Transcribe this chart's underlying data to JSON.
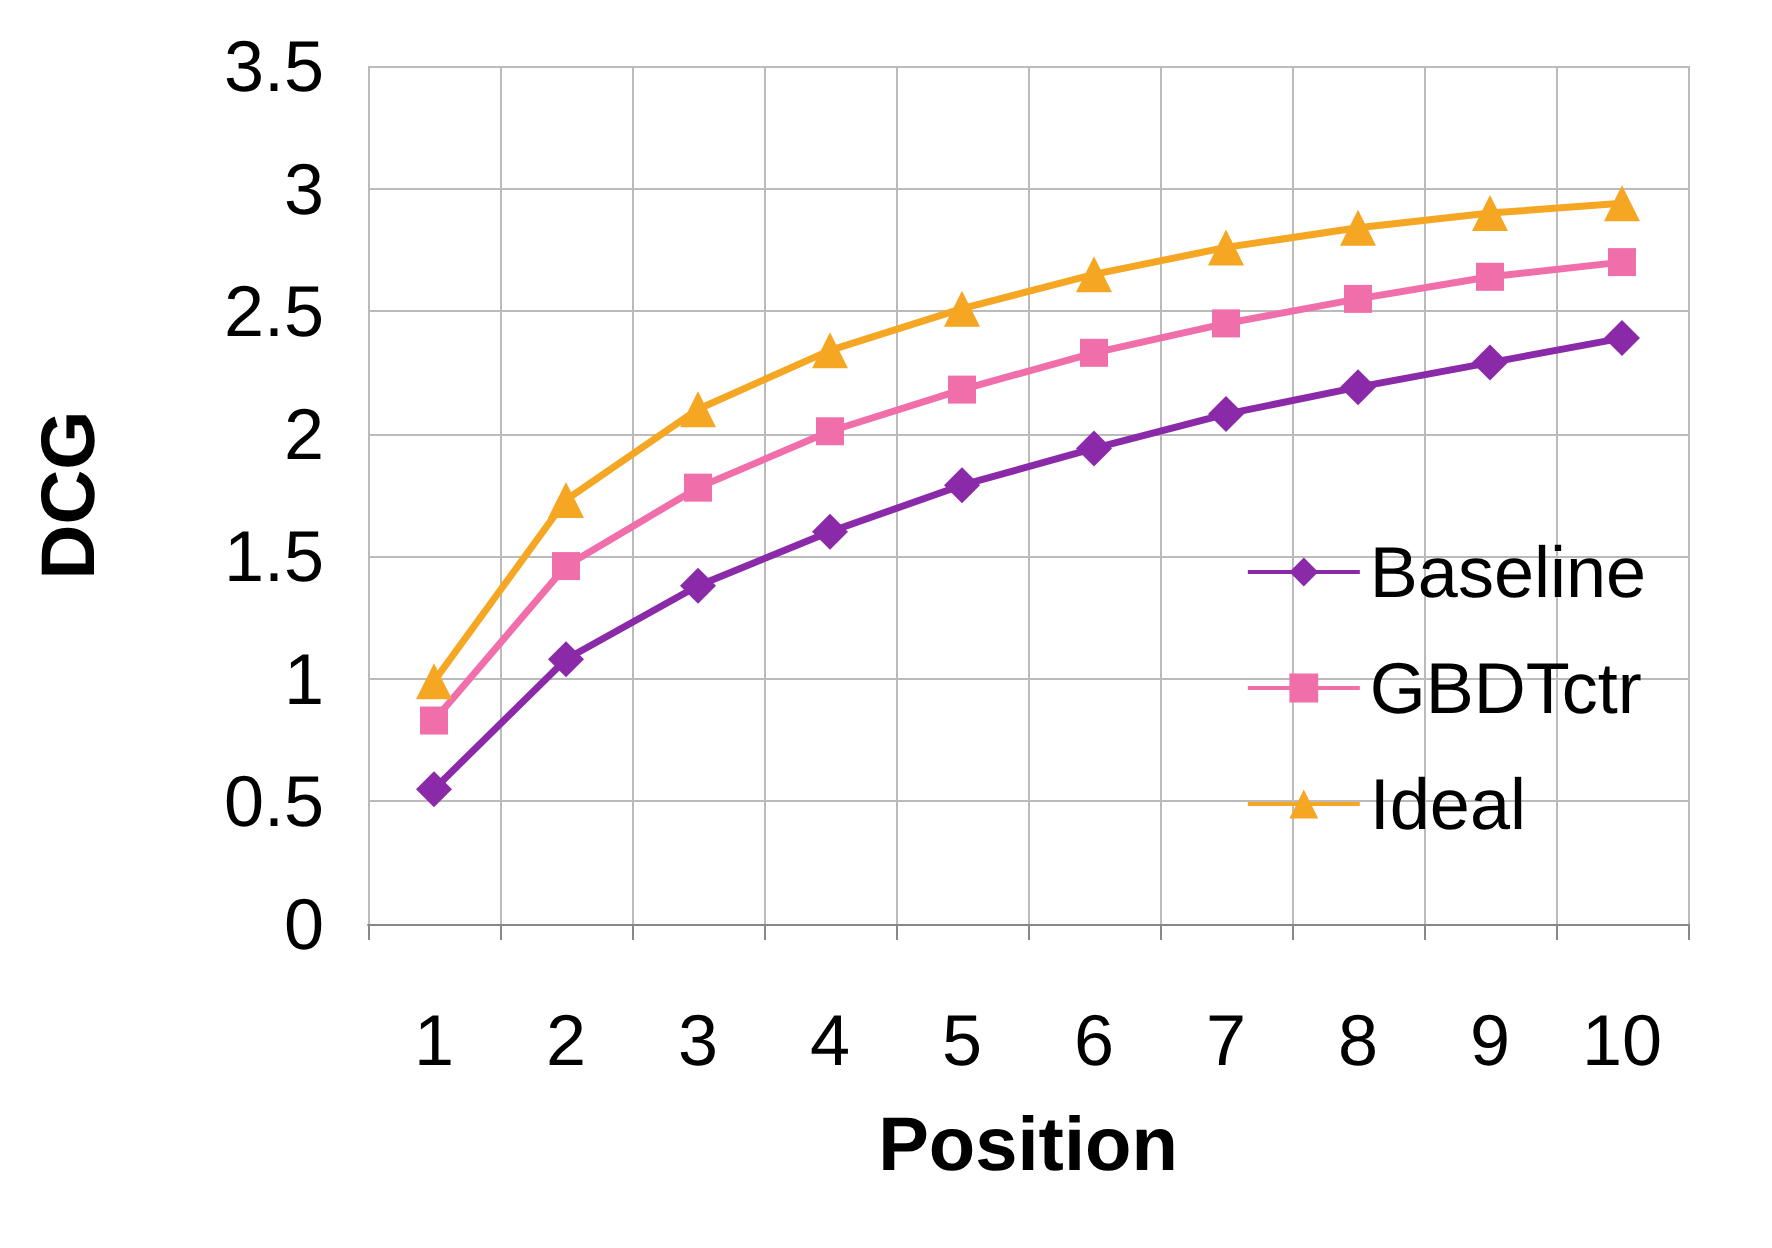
{
  "chart_data": {
    "type": "line",
    "xlabel": "Position",
    "ylabel": "DCG",
    "categories": [
      "1",
      "2",
      "3",
      "4",
      "5",
      "6",
      "7",
      "8",
      "9",
      "10"
    ],
    "series": [
      {
        "name": "Baseline",
        "color": "#8b2aa8",
        "marker": "diamond",
        "values": [
          0.55,
          1.08,
          1.38,
          1.6,
          1.79,
          1.94,
          2.08,
          2.19,
          2.29,
          2.39
        ]
      },
      {
        "name": "GBDTctr",
        "color": "#f06eaa",
        "marker": "square",
        "values": [
          0.83,
          1.46,
          1.78,
          2.01,
          2.18,
          2.33,
          2.45,
          2.55,
          2.64,
          2.7
        ]
      },
      {
        "name": "Ideal",
        "color": "#f5a623",
        "marker": "triangle",
        "values": [
          0.99,
          1.73,
          2.1,
          2.34,
          2.51,
          2.65,
          2.76,
          2.84,
          2.9,
          2.94
        ]
      }
    ],
    "ylim": [
      0,
      3.5
    ],
    "yticks": [
      0,
      0.5,
      1,
      1.5,
      2,
      2.5,
      3,
      3.5
    ],
    "grid": true,
    "legend": "right",
    "line_style": "solid"
  }
}
